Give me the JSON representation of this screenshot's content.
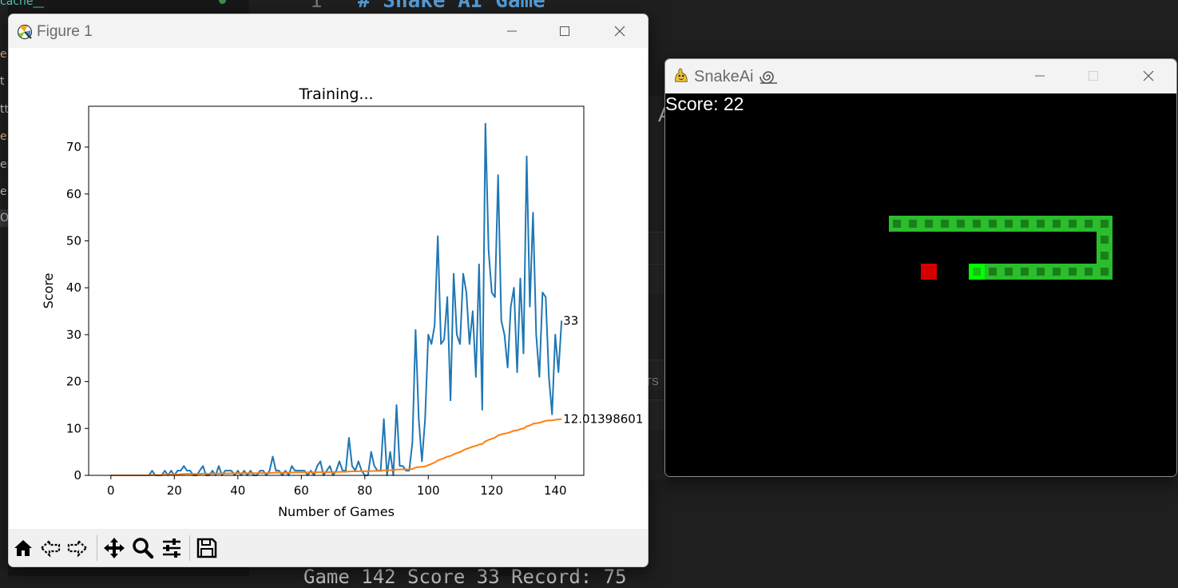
{
  "editor": {
    "sidebar_top_label": "cache__",
    "sidebar_fragments": [
      {
        "text": "e",
        "color": "#e2c08d"
      },
      {
        "text": "t",
        "color": "#cccccc"
      },
      {
        "text": "tt",
        "color": "#cccccc"
      },
      {
        "text": "e.",
        "color": "#e5c07b"
      },
      {
        "text": "er",
        "color": "#cccccc"
      },
      {
        "text": "e",
        "color": "#cccccc"
      },
      {
        "text": "O",
        "color": "#cccccc"
      }
    ],
    "code_line_number": "1",
    "code_line_text": "# Snake AI Game",
    "panel_letter": "A",
    "panel_label": "TS",
    "terminal_text": "Game 142 Score 33 Record: 75"
  },
  "figure_window": {
    "title": "Figure 1",
    "app_icon": "matplotlib-icon",
    "controls": [
      "minimize-icon",
      "maximize-icon",
      "close-icon"
    ],
    "toolbar": [
      {
        "name": "home-icon"
      },
      {
        "name": "back-arrow-icon"
      },
      {
        "name": "forward-arrow-icon"
      },
      {
        "name": "pan-icon"
      },
      {
        "name": "zoom-icon"
      },
      {
        "name": "configure-subplots-icon"
      },
      {
        "name": "save-icon"
      }
    ]
  },
  "chart_data": {
    "type": "line",
    "title": "Training...",
    "xlabel": "Number of Games",
    "ylabel": "Score",
    "xlim": [
      -7,
      149
    ],
    "ylim": [
      0,
      78.7
    ],
    "xticks": [
      0,
      20,
      40,
      60,
      80,
      100,
      120,
      140
    ],
    "yticks": [
      0,
      10,
      20,
      30,
      40,
      50,
      60,
      70
    ],
    "grid": false,
    "series": [
      {
        "color": "#1f77b4",
        "values": [
          0,
          0,
          0,
          0,
          0,
          0,
          0,
          0,
          0,
          0,
          0,
          0,
          0,
          1,
          0,
          0,
          0,
          1,
          0,
          1,
          0,
          1,
          1,
          2,
          1,
          1,
          0,
          0,
          1,
          2,
          0,
          0,
          1,
          0,
          2,
          0,
          1,
          1,
          1,
          0,
          1,
          0,
          1,
          0,
          1,
          0,
          0,
          1,
          1,
          0,
          1,
          4,
          1,
          1,
          0,
          1,
          0,
          2,
          1,
          1,
          1,
          1,
          0,
          1,
          0,
          2,
          3,
          0,
          1,
          2,
          0,
          1,
          3,
          1,
          1,
          8,
          2,
          1,
          3,
          1,
          0,
          0,
          5,
          2,
          1,
          1,
          12,
          0,
          5,
          0,
          15,
          2,
          2,
          1,
          1,
          7,
          31,
          12,
          3,
          12,
          30,
          28,
          32,
          51,
          28,
          29,
          38,
          16,
          43,
          30,
          28,
          43,
          39,
          28,
          35,
          21,
          45,
          14,
          75,
          48,
          39,
          38,
          64,
          33,
          30,
          23,
          36,
          40,
          22,
          42,
          26,
          68,
          36,
          56,
          30,
          21,
          39,
          38,
          21,
          13,
          30,
          22,
          33
        ],
        "end_label": "33"
      },
      {
        "color": "#ff7f0e",
        "values": [
          0,
          0,
          0,
          0,
          0,
          0,
          0,
          0,
          0,
          0,
          0,
          0,
          0,
          0.08,
          0.07,
          0.07,
          0.06,
          0.12,
          0.11,
          0.16,
          0.14,
          0.18,
          0.23,
          0.29,
          0.32,
          0.31,
          0.3,
          0.29,
          0.32,
          0.38,
          0.37,
          0.36,
          0.36,
          0.35,
          0.4,
          0.39,
          0.41,
          0.43,
          0.45,
          0.44,
          0.46,
          0.45,
          0.47,
          0.46,
          0.48,
          0.47,
          0.46,
          0.48,
          0.49,
          0.48,
          0.49,
          0.56,
          0.57,
          0.58,
          0.57,
          0.58,
          0.57,
          0.6,
          0.61,
          0.62,
          0.63,
          0.64,
          0.63,
          0.64,
          0.64,
          0.66,
          0.7,
          0.69,
          0.69,
          0.71,
          0.7,
          0.71,
          0.74,
          0.74,
          0.75,
          0.84,
          0.85,
          0.86,
          0.88,
          0.89,
          0.88,
          0.87,
          0.92,
          0.93,
          0.93,
          0.94,
          1.07,
          1.06,
          1.1,
          1.09,
          1.25,
          1.26,
          1.27,
          1.28,
          1.28,
          1.35,
          1.67,
          1.79,
          1.8,
          1.91,
          2.19,
          2.44,
          2.73,
          3.19,
          3.43,
          3.67,
          4.0,
          4.12,
          4.5,
          4.75,
          4.97,
          5.33,
          5.63,
          5.86,
          6.12,
          6.28,
          6.58,
          6.7,
          7.25,
          7.56,
          7.8,
          8.03,
          8.53,
          8.73,
          8.91,
          9.01,
          9.25,
          9.51,
          9.6,
          9.86,
          9.98,
          10.45,
          10.63,
          10.99,
          11.12,
          11.2,
          11.43,
          11.62,
          11.71,
          11.72,
          11.85,
          11.92,
          12.01398601
        ],
        "end_label": "12.01398601"
      }
    ]
  },
  "snake_window": {
    "title": "SnakeAi",
    "app_icon": "pygame-icon",
    "controls": [
      "minimize-icon",
      "maximize-icon",
      "close-icon"
    ],
    "score_label": "Score: 22",
    "game": {
      "cell_size": 20,
      "head_color": "#00ff00",
      "body_color": "#2bbd2b",
      "inner_color": "#1a7f1a",
      "food_color": "#d40000"
    }
  }
}
